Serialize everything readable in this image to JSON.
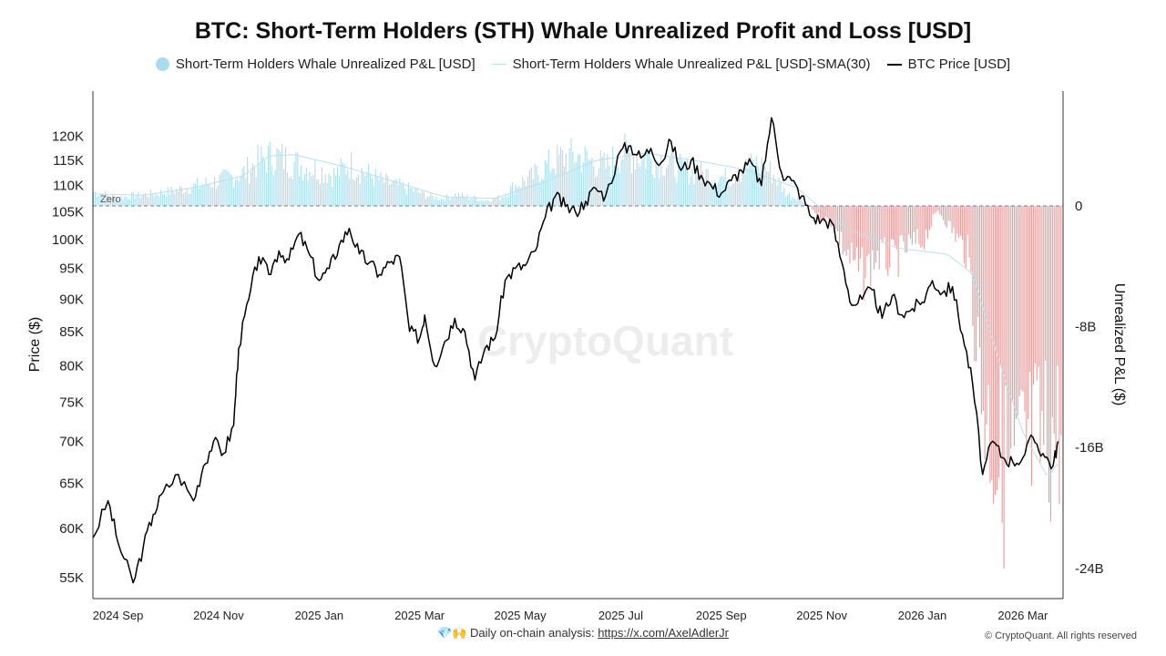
{
  "header": {
    "title": "BTC: Short-Term Holders (STH) Whale Unrealized Profit and Loss [USD]"
  },
  "legend": {
    "items": [
      {
        "label": "Short-Term Holders Whale Unrealized P&L [USD]",
        "color": "#a9dcec"
      },
      {
        "label": "Short-Term Holders Whale Unrealized P&L [USD]-SMA(30)",
        "color": "#b8e1ee"
      },
      {
        "label": "BTC Price [USD]",
        "color": "#000000"
      }
    ]
  },
  "footer": {
    "emoji": "💎🙌",
    "text": "Daily on-chain analysis:",
    "link": "https://x.com/AxelAdlerJr",
    "copyright": "© CryptoQuant. All rights reserved"
  },
  "watermark": "CryptoQuant",
  "chart_data": {
    "type": "bar+line",
    "title": "BTC: Short-Term Holders (STH) Whale Unrealized Profit and Loss [USD]",
    "x_ticks": [
      "2024 Sep",
      "2024 Nov",
      "2025 Jan",
      "2025 Mar",
      "2025 May",
      "2025 Jul",
      "2025 Sep",
      "2025 Nov",
      "2026 Jan",
      "2026 Mar"
    ],
    "x_range_months": [
      0,
      19.3
    ],
    "x_tick_months": [
      0.5,
      2.5,
      4.5,
      6.5,
      8.5,
      10.5,
      12.5,
      14.5,
      16.5,
      18.5
    ],
    "left_axis": {
      "label": "Price ($)",
      "scale": "log",
      "ylim": [
        53000,
        130000
      ],
      "ticks": [
        55000,
        60000,
        65000,
        70000,
        75000,
        80000,
        85000,
        90000,
        95000,
        100000,
        105000,
        110000,
        115000,
        120000
      ],
      "tick_labels": [
        "55K",
        "60K",
        "65K",
        "70K",
        "75K",
        "80K",
        "85K",
        "90K",
        "95K",
        "100K",
        "105K",
        "110K",
        "115K",
        "120K"
      ]
    },
    "right_axis": {
      "label": "Unrealized P&L ($)",
      "ylim_billions": [
        -26,
        7.6
      ],
      "ticks": [
        0,
        -8,
        -16,
        -24
      ],
      "tick_labels": [
        "0",
        "-8B",
        "-16B",
        "-24B"
      ]
    },
    "zero_label": "Zero",
    "btc_price": {
      "name": "BTC Price [USD]",
      "months": [
        0,
        0.3,
        0.5,
        0.8,
        1.0,
        1.2,
        1.4,
        1.7,
        2.0,
        2.2,
        2.4,
        2.6,
        2.8,
        2.9,
        3.1,
        3.3,
        3.5,
        3.7,
        3.9,
        4.1,
        4.3,
        4.5,
        4.7,
        4.9,
        5.1,
        5.3,
        5.5,
        5.7,
        5.9,
        6.1,
        6.3,
        6.5,
        6.6,
        6.8,
        7.0,
        7.2,
        7.4,
        7.6,
        7.8,
        8.0,
        8.2,
        8.4,
        8.6,
        8.8,
        9.0,
        9.2,
        9.4,
        9.6,
        9.8,
        10.0,
        10.2,
        10.5,
        10.7,
        10.9,
        11.1,
        11.3,
        11.5,
        11.7,
        11.9,
        12.1,
        12.3,
        12.5,
        12.7,
        12.9,
        13.1,
        13.3,
        13.5,
        13.7,
        13.9,
        14.1,
        14.3,
        14.5,
        14.7,
        14.9,
        15.1,
        15.3,
        15.5,
        15.7,
        15.9,
        16.1,
        16.3,
        16.5,
        16.7,
        16.9,
        17.1,
        17.3,
        17.5,
        17.7,
        17.9,
        18.1,
        18.3,
        18.5,
        18.7,
        18.9,
        19.1,
        19.2
      ],
      "values": [
        59000,
        63000,
        58500,
        54500,
        58000,
        61500,
        64000,
        66000,
        63000,
        67000,
        70000,
        68500,
        72000,
        82500,
        90000,
        97000,
        94000,
        98000,
        96500,
        101000,
        97500,
        93000,
        95000,
        99000,
        102000,
        97500,
        96000,
        94000,
        96000,
        97000,
        85000,
        84000,
        87500,
        80000,
        83500,
        87000,
        85000,
        78000,
        82500,
        84000,
        93000,
        95000,
        95500,
        98000,
        104000,
        108000,
        106000,
        105000,
        107000,
        109500,
        108000,
        117000,
        118000,
        115500,
        117500,
        114500,
        119000,
        113000,
        115000,
        112000,
        110000,
        108500,
        111000,
        113000,
        114500,
        110000,
        124000,
        112500,
        111000,
        108000,
        104000,
        103500,
        103000,
        96000,
        89000,
        90000,
        91500,
        87000,
        90500,
        87500,
        88500,
        89500,
        93000,
        91000,
        92000,
        84500,
        77500,
        66000,
        70000,
        68000,
        67500,
        68000,
        70500,
        68500,
        67000,
        70000
      ]
    },
    "unrealized_pnl": {
      "name": "Short-Term Holders Whale Unrealized P&L [USD]",
      "unit": "billions USD",
      "months": [
        0,
        0.5,
        1.0,
        1.5,
        2.0,
        2.5,
        3.0,
        3.3,
        3.6,
        3.9,
        4.2,
        4.5,
        4.8,
        5.1,
        5.4,
        5.7,
        6.0,
        6.3,
        6.6,
        6.9,
        7.2,
        7.5,
        7.8,
        8.1,
        8.4,
        8.7,
        9.0,
        9.3,
        9.6,
        9.9,
        10.2,
        10.5,
        10.8,
        11.1,
        11.4,
        11.7,
        12.0,
        12.3,
        12.6,
        12.9,
        13.2,
        13.5,
        13.8,
        14.1,
        14.4,
        14.7,
        15.0,
        15.3,
        15.6,
        15.9,
        16.2,
        16.5,
        16.8,
        17.1,
        17.4,
        17.7,
        18.0,
        18.3,
        18.6,
        18.9,
        19.2
      ],
      "values": [
        1.0,
        0.6,
        0.8,
        1.0,
        1.4,
        1.8,
        2.4,
        3.2,
        3.6,
        3.2,
        2.8,
        2.6,
        2.2,
        3.0,
        2.4,
        1.8,
        1.5,
        1.2,
        0.8,
        0.5,
        0.8,
        0.6,
        0.4,
        0.6,
        1.5,
        2.0,
        2.8,
        3.4,
        3.6,
        3.2,
        2.8,
        3.8,
        3.6,
        3.4,
        3.2,
        2.6,
        2.4,
        2.2,
        2.0,
        2.6,
        3.0,
        2.4,
        0.8,
        0.5,
        -0.6,
        -1.2,
        -3.5,
        -5.0,
        -3.5,
        -4.0,
        -3.0,
        -2.5,
        -0.3,
        -1.8,
        -3.5,
        -14.0,
        -18.0,
        -19.5,
        -17.5,
        -17.0,
        -16.0
      ]
    },
    "sma30": {
      "name": "Short-Term Holders Whale Unrealized P&L [USD]-SMA(30)",
      "unit": "billions USD",
      "months": [
        0,
        1.0,
        2.0,
        3.0,
        3.5,
        4.0,
        5.0,
        6.0,
        7.0,
        8.0,
        9.0,
        10.0,
        11.0,
        12.0,
        13.0,
        14.0,
        14.5,
        15.0,
        16.0,
        17.0,
        17.5,
        18.0,
        18.5,
        19.0,
        19.2
      ],
      "values": [
        0.8,
        0.7,
        1.2,
        2.0,
        3.3,
        3.4,
        2.6,
        1.6,
        0.6,
        0.5,
        1.6,
        3.0,
        3.5,
        3.0,
        2.4,
        1.2,
        -0.2,
        -1.5,
        -2.8,
        -3.2,
        -4.5,
        -10.0,
        -15.0,
        -18.0,
        -17.0
      ]
    }
  }
}
